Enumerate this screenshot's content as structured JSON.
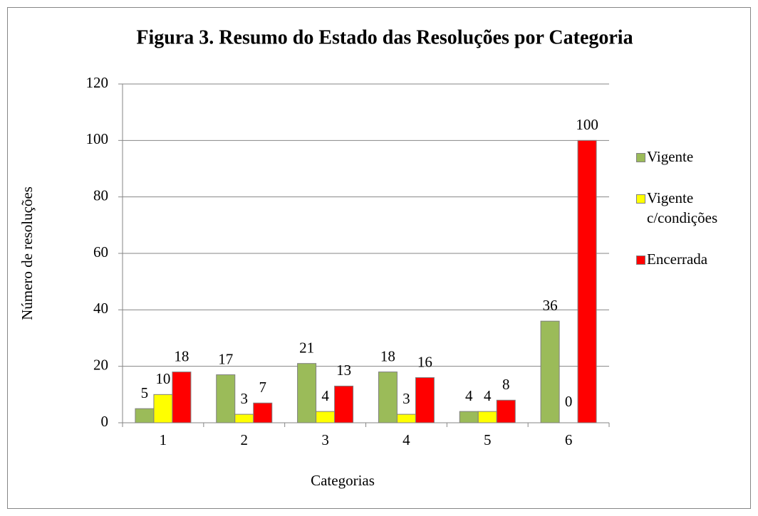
{
  "chart_data": {
    "type": "bar",
    "title": "Figura 3. Resumo do Estado das Resoluções por Categoria",
    "x_label": "Categorias",
    "y_label": "Número de resoluções",
    "categories": [
      "1",
      "2",
      "3",
      "4",
      "5",
      "6"
    ],
    "series": [
      {
        "name": "Vigente",
        "color": "#9bbb59",
        "values": [
          5,
          17,
          21,
          18,
          4,
          36
        ]
      },
      {
        "name": "Vigente c/condições",
        "color": "#ffff00",
        "values": [
          10,
          3,
          4,
          3,
          4,
          0
        ]
      },
      {
        "name": "Encerrada",
        "color": "#ff0000",
        "values": [
          18,
          7,
          13,
          16,
          8,
          100
        ]
      }
    ],
    "ylim": [
      0,
      120
    ],
    "yticks": [
      0,
      20,
      40,
      60,
      80,
      100,
      120
    ],
    "grid": true,
    "legend": "right"
  }
}
